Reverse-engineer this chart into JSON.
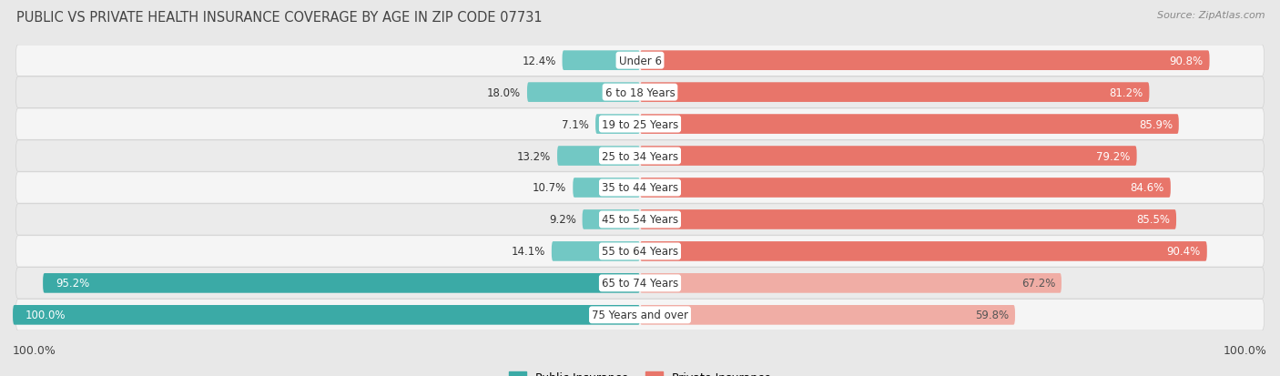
{
  "title": "PUBLIC VS PRIVATE HEALTH INSURANCE COVERAGE BY AGE IN ZIP CODE 07731",
  "source": "Source: ZipAtlas.com",
  "categories": [
    "Under 6",
    "6 to 18 Years",
    "19 to 25 Years",
    "25 to 34 Years",
    "35 to 44 Years",
    "45 to 54 Years",
    "55 to 64 Years",
    "65 to 74 Years",
    "75 Years and over"
  ],
  "public_values": [
    12.4,
    18.0,
    7.1,
    13.2,
    10.7,
    9.2,
    14.1,
    95.2,
    100.0
  ],
  "private_values": [
    90.8,
    81.2,
    85.9,
    79.2,
    84.6,
    85.5,
    90.4,
    67.2,
    59.8
  ],
  "public_color_dark": "#3BAAA6",
  "public_color_light": "#72C8C4",
  "private_color_dark": "#E8756A",
  "private_color_light": "#F0ADA5",
  "row_bg_odd": "#f5f5f5",
  "row_bg_even": "#ebebeb",
  "bg_color": "#e8e8e8",
  "title_color": "#444444",
  "axis_max": 100.0,
  "title_fontsize": 10.5,
  "source_fontsize": 8,
  "bar_label_fontsize": 8.5,
  "category_fontsize": 8.5,
  "legend_fontsize": 9,
  "pub_dark_threshold": 50,
  "priv_dark_threshold": 70
}
